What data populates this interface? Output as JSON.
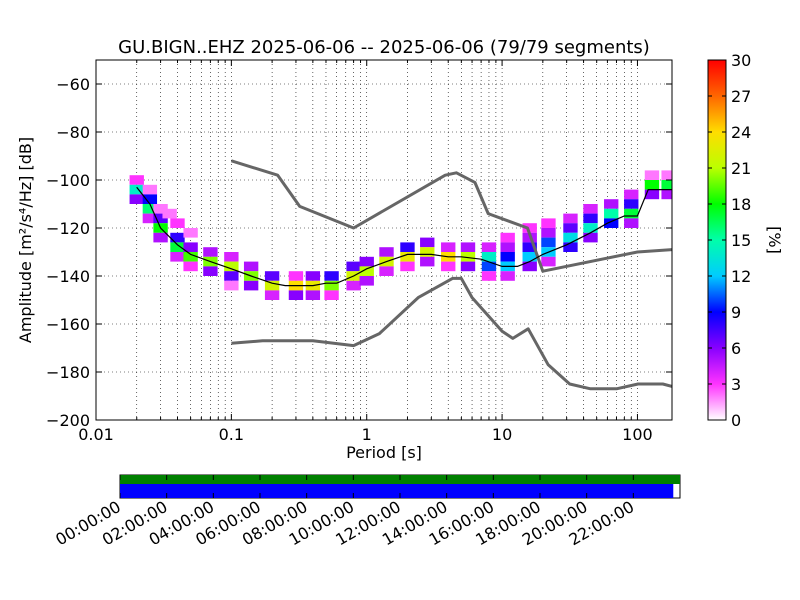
{
  "title": "GU.BIGN..EHZ   2025-06-06 -- 2025-06-06  (79/79 segments)",
  "chart_data": {
    "type": "heatmap",
    "subtype": "probabilistic power spectral density",
    "title": "GU.BIGN..EHZ   2025-06-06 -- 2025-06-06  (79/79 segments)",
    "xlabel": "Period [s]",
    "ylabel": "Amplitude [m²/s⁴/Hz] [dB]",
    "x_scale": "log",
    "xlim": [
      0.01,
      180
    ],
    "ylim": [
      -200,
      -50
    ],
    "x_ticks": [
      {
        "value": 0.01,
        "label": "0.01"
      },
      {
        "value": 0.1,
        "label": "0.1"
      },
      {
        "value": 1,
        "label": "1"
      },
      {
        "value": 10,
        "label": "10"
      },
      {
        "value": 100,
        "label": "100"
      }
    ],
    "y_ticks": [
      {
        "value": -200,
        "label": "−200"
      },
      {
        "value": -180,
        "label": "−180"
      },
      {
        "value": -160,
        "label": "−160"
      },
      {
        "value": -140,
        "label": "−140"
      },
      {
        "value": -120,
        "label": "−120"
      },
      {
        "value": -100,
        "label": "−100"
      },
      {
        "value": -80,
        "label": "−80"
      },
      {
        "value": -60,
        "label": "−60"
      }
    ],
    "grid": true,
    "colorbar": {
      "label": "[%]",
      "min": 0,
      "max": 30,
      "ticks": [
        {
          "value": 0,
          "label": "0"
        },
        {
          "value": 3,
          "label": "3"
        },
        {
          "value": 6,
          "label": "6"
        },
        {
          "value": 9,
          "label": "9"
        },
        {
          "value": 12,
          "label": "12"
        },
        {
          "value": 15,
          "label": "15"
        },
        {
          "value": 18,
          "label": "18"
        },
        {
          "value": 21,
          "label": "21"
        },
        {
          "value": 24,
          "label": "24"
        },
        {
          "value": 27,
          "label": "27"
        },
        {
          "value": 30,
          "label": "30"
        }
      ]
    },
    "mode_curve": [
      [
        0.02,
        -103
      ],
      [
        0.025,
        -110
      ],
      [
        0.03,
        -120
      ],
      [
        0.04,
        -127
      ],
      [
        0.05,
        -131
      ],
      [
        0.07,
        -134
      ],
      [
        0.1,
        -137
      ],
      [
        0.14,
        -140
      ],
      [
        0.2,
        -143
      ],
      [
        0.25,
        -144
      ],
      [
        0.3,
        -144
      ],
      [
        0.4,
        -144
      ],
      [
        0.5,
        -143
      ],
      [
        0.6,
        -143
      ],
      [
        0.8,
        -140
      ],
      [
        1,
        -137
      ],
      [
        1.4,
        -134
      ],
      [
        2,
        -131
      ],
      [
        3,
        -131
      ],
      [
        4,
        -132
      ],
      [
        5,
        -132
      ],
      [
        7,
        -133
      ],
      [
        10,
        -136
      ],
      [
        13,
        -136
      ],
      [
        16,
        -134
      ],
      [
        20,
        -131
      ],
      [
        30,
        -127
      ],
      [
        45,
        -122
      ],
      [
        60,
        -118
      ],
      [
        80,
        -115
      ],
      [
        100,
        -115
      ],
      [
        120,
        -104
      ],
      [
        180,
        -104
      ]
    ],
    "pdf_cells": [
      {
        "x": 0.02,
        "y": -100,
        "p": 3
      },
      {
        "x": 0.02,
        "y": -104,
        "p": 14
      },
      {
        "x": 0.02,
        "y": -108,
        "p": 6
      },
      {
        "x": 0.025,
        "y": -104,
        "p": 2
      },
      {
        "x": 0.025,
        "y": -108,
        "p": 9
      },
      {
        "x": 0.025,
        "y": -112,
        "p": 16
      },
      {
        "x": 0.025,
        "y": -116,
        "p": 4
      },
      {
        "x": 0.03,
        "y": -112,
        "p": 2
      },
      {
        "x": 0.03,
        "y": -116,
        "p": 7
      },
      {
        "x": 0.03,
        "y": -120,
        "p": 18
      },
      {
        "x": 0.03,
        "y": -124,
        "p": 5
      },
      {
        "x": 0.035,
        "y": -114,
        "p": 2
      },
      {
        "x": 0.04,
        "y": -118,
        "p": 3
      },
      {
        "x": 0.04,
        "y": -124,
        "p": 8
      },
      {
        "x": 0.04,
        "y": -128,
        "p": 17
      },
      {
        "x": 0.04,
        "y": -132,
        "p": 4
      },
      {
        "x": 0.05,
        "y": -122,
        "p": 2
      },
      {
        "x": 0.05,
        "y": -128,
        "p": 6
      },
      {
        "x": 0.05,
        "y": -132,
        "p": 19
      },
      {
        "x": 0.05,
        "y": -136,
        "p": 3
      },
      {
        "x": 0.07,
        "y": -130,
        "p": 5
      },
      {
        "x": 0.07,
        "y": -134,
        "p": 20
      },
      {
        "x": 0.07,
        "y": -138,
        "p": 6
      },
      {
        "x": 0.1,
        "y": -132,
        "p": 4
      },
      {
        "x": 0.1,
        "y": -136,
        "p": 21
      },
      {
        "x": 0.1,
        "y": -140,
        "p": 7
      },
      {
        "x": 0.1,
        "y": -144,
        "p": 2
      },
      {
        "x": 0.14,
        "y": -136,
        "p": 5
      },
      {
        "x": 0.14,
        "y": -140,
        "p": 20
      },
      {
        "x": 0.14,
        "y": -144,
        "p": 6
      },
      {
        "x": 0.2,
        "y": -140,
        "p": 7
      },
      {
        "x": 0.2,
        "y": -144,
        "p": 22
      },
      {
        "x": 0.2,
        "y": -148,
        "p": 4
      },
      {
        "x": 0.3,
        "y": -140,
        "p": 3
      },
      {
        "x": 0.3,
        "y": -144,
        "p": 24
      },
      {
        "x": 0.3,
        "y": -148,
        "p": 6
      },
      {
        "x": 0.4,
        "y": -140,
        "p": 6
      },
      {
        "x": 0.4,
        "y": -144,
        "p": 23
      },
      {
        "x": 0.4,
        "y": -148,
        "p": 5
      },
      {
        "x": 0.55,
        "y": -140,
        "p": 8
      },
      {
        "x": 0.55,
        "y": -144,
        "p": 20
      },
      {
        "x": 0.55,
        "y": -148,
        "p": 3
      },
      {
        "x": 0.8,
        "y": -136,
        "p": 7
      },
      {
        "x": 0.8,
        "y": -140,
        "p": 22
      },
      {
        "x": 0.8,
        "y": -144,
        "p": 4
      },
      {
        "x": 1.0,
        "y": -134,
        "p": 6
      },
      {
        "x": 1.0,
        "y": -138,
        "p": 21
      },
      {
        "x": 1.0,
        "y": -142,
        "p": 5
      },
      {
        "x": 1.4,
        "y": -130,
        "p": 5
      },
      {
        "x": 1.4,
        "y": -134,
        "p": 22
      },
      {
        "x": 1.4,
        "y": -138,
        "p": 4
      },
      {
        "x": 2,
        "y": -128,
        "p": 8
      },
      {
        "x": 2,
        "y": -132,
        "p": 23
      },
      {
        "x": 2,
        "y": -136,
        "p": 3
      },
      {
        "x": 2.8,
        "y": -126,
        "p": 6
      },
      {
        "x": 2.8,
        "y": -130,
        "p": 22
      },
      {
        "x": 2.8,
        "y": -134,
        "p": 5
      },
      {
        "x": 4,
        "y": -128,
        "p": 4
      },
      {
        "x": 4,
        "y": -132,
        "p": 24
      },
      {
        "x": 4,
        "y": -136,
        "p": 3
      },
      {
        "x": 5.6,
        "y": -128,
        "p": 5
      },
      {
        "x": 5.6,
        "y": -132,
        "p": 21
      },
      {
        "x": 5.6,
        "y": -136,
        "p": 6
      },
      {
        "x": 8,
        "y": -128,
        "p": 4
      },
      {
        "x": 8,
        "y": -132,
        "p": 14
      },
      {
        "x": 8,
        "y": -136,
        "p": 10
      },
      {
        "x": 8,
        "y": -140,
        "p": 3
      },
      {
        "x": 11,
        "y": -124,
        "p": 3
      },
      {
        "x": 11,
        "y": -128,
        "p": 5
      },
      {
        "x": 11,
        "y": -132,
        "p": 9
      },
      {
        "x": 11,
        "y": -136,
        "p": 12
      },
      {
        "x": 11,
        "y": -140,
        "p": 4
      },
      {
        "x": 16,
        "y": -120,
        "p": 3
      },
      {
        "x": 16,
        "y": -124,
        "p": 5
      },
      {
        "x": 16,
        "y": -128,
        "p": 8
      },
      {
        "x": 16,
        "y": -132,
        "p": 12
      },
      {
        "x": 16,
        "y": -136,
        "p": 6
      },
      {
        "x": 22,
        "y": -118,
        "p": 3
      },
      {
        "x": 22,
        "y": -122,
        "p": 5
      },
      {
        "x": 22,
        "y": -126,
        "p": 10
      },
      {
        "x": 22,
        "y": -130,
        "p": 12
      },
      {
        "x": 22,
        "y": -134,
        "p": 4
      },
      {
        "x": 32,
        "y": -116,
        "p": 4
      },
      {
        "x": 32,
        "y": -120,
        "p": 7
      },
      {
        "x": 32,
        "y": -124,
        "p": 13
      },
      {
        "x": 32,
        "y": -128,
        "p": 8
      },
      {
        "x": 45,
        "y": -112,
        "p": 4
      },
      {
        "x": 45,
        "y": -116,
        "p": 8
      },
      {
        "x": 45,
        "y": -120,
        "p": 14
      },
      {
        "x": 45,
        "y": -124,
        "p": 6
      },
      {
        "x": 64,
        "y": -110,
        "p": 5
      },
      {
        "x": 64,
        "y": -114,
        "p": 15
      },
      {
        "x": 64,
        "y": -118,
        "p": 9
      },
      {
        "x": 90,
        "y": -106,
        "p": 4
      },
      {
        "x": 90,
        "y": -110,
        "p": 8
      },
      {
        "x": 90,
        "y": -114,
        "p": 17
      },
      {
        "x": 90,
        "y": -118,
        "p": 5
      },
      {
        "x": 128,
        "y": -98,
        "p": 2
      },
      {
        "x": 128,
        "y": -102,
        "p": 18
      },
      {
        "x": 128,
        "y": -106,
        "p": 6
      },
      {
        "x": 170,
        "y": -98,
        "p": 2
      },
      {
        "x": 170,
        "y": -102,
        "p": 17
      },
      {
        "x": 170,
        "y": -106,
        "p": 5
      }
    ],
    "noise_models": [
      {
        "points": [
          [
            0.1,
            -92
          ],
          [
            0.22,
            -98
          ],
          [
            0.32,
            -111
          ],
          [
            0.8,
            -120
          ],
          [
            3.8,
            -98
          ],
          [
            4.6,
            -97
          ],
          [
            6.3,
            -101
          ],
          [
            7.9,
            -114
          ],
          [
            15.4,
            -120
          ],
          [
            20,
            -138
          ],
          [
            100,
            -130
          ],
          [
            180,
            -129
          ]
        ]
      },
      {
        "points": [
          [
            0.1,
            -168
          ],
          [
            0.17,
            -167
          ],
          [
            0.4,
            -167
          ],
          [
            0.8,
            -169
          ],
          [
            1.24,
            -164
          ],
          [
            2.4,
            -149
          ],
          [
            4.3,
            -141
          ],
          [
            5,
            -141
          ],
          [
            6,
            -149
          ],
          [
            10,
            -163
          ],
          [
            12,
            -166
          ],
          [
            15.6,
            -162
          ],
          [
            21.9,
            -177
          ],
          [
            31.6,
            -185
          ],
          [
            45,
            -187
          ],
          [
            70,
            -187
          ],
          [
            101,
            -185
          ],
          [
            154,
            -185
          ],
          [
            180,
            -186
          ]
        ]
      }
    ],
    "coverage": {
      "time_ticks": [
        "00:00:00",
        "02:00:00",
        "04:00:00",
        "06:00:00",
        "08:00:00",
        "10:00:00",
        "12:00:00",
        "14:00:00",
        "16:00:00",
        "18:00:00",
        "20:00:00",
        "22:00:00"
      ],
      "data_fraction": 1.0,
      "segments_fraction": 0.988,
      "data_color": "#008000",
      "segments_color": "#0000ff"
    }
  }
}
